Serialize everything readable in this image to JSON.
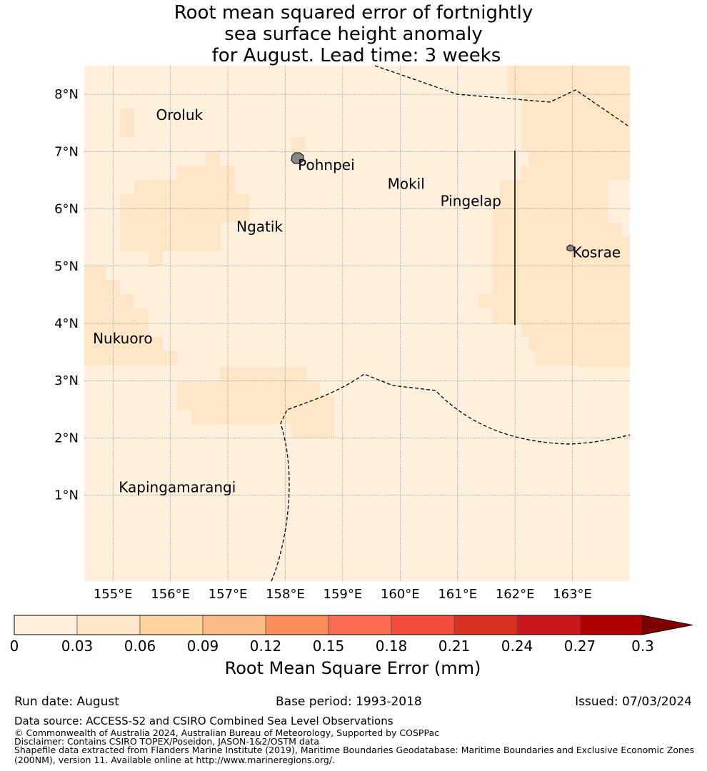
{
  "title": {
    "line1": "Root mean squared error of fortnightly",
    "line2": "sea surface height anomaly",
    "line3": "for August. Lead time: 3 weeks"
  },
  "map": {
    "lon_range": [
      154.5,
      164.0
    ],
    "lat_range": [
      -0.5,
      8.5
    ],
    "lon_ticks": [
      "155°E",
      "156°E",
      "157°E",
      "158°E",
      "159°E",
      "160°E",
      "161°E",
      "162°E",
      "163°E"
    ],
    "lat_ticks": [
      "1°N",
      "2°N",
      "3°N",
      "4°N",
      "5°N",
      "6°N",
      "7°N",
      "8°N"
    ],
    "colors": {
      "bin1": "#fff0dd",
      "bin2": "#fee6c6",
      "grid": "#808080",
      "land": "#888888"
    },
    "places": [
      {
        "name": "Oroluk",
        "lon": 155.75,
        "lat": 7.55
      },
      {
        "name": "Pohnpei",
        "lon": 158.22,
        "lat": 6.68
      },
      {
        "name": "Mokil",
        "lon": 159.78,
        "lat": 6.35
      },
      {
        "name": "Pingelap",
        "lon": 160.7,
        "lat": 6.05
      },
      {
        "name": "Ngatik",
        "lon": 157.15,
        "lat": 5.6
      },
      {
        "name": "Kosrae",
        "lon": 163.0,
        "lat": 5.15
      },
      {
        "name": "Nukuoro",
        "lon": 154.65,
        "lat": 3.65
      },
      {
        "name": "Kapingamarangi",
        "lon": 155.1,
        "lat": 1.05
      }
    ]
  },
  "colorbar": {
    "ticks": [
      "0",
      "0.03",
      "0.06",
      "0.09",
      "0.12",
      "0.15",
      "0.18",
      "0.21",
      "0.24",
      "0.27",
      "0.3"
    ],
    "colors": [
      "#fff0dd",
      "#fee6c6",
      "#fdd49e",
      "#fdbb84",
      "#fc8d59",
      "#fc6a50",
      "#f44d3d",
      "#d7301f",
      "#c8161a",
      "#b00000"
    ],
    "extend_color": "#7f0000",
    "label": "Root Mean Square Error (mm)"
  },
  "footer": {
    "run_date": "Run date: August",
    "base_period": "Base period: 1993-2018",
    "issued": "Issued: 07/03/2024",
    "source": "Data source: ACCESS-S2 and CSIRO Combined Sea Level Observations",
    "copyright": "© Commonwealth of Australia 2024, Australian Bureau of Meteorology, Supported by COSPPac",
    "disclaimer": "Disclaimer: Contains CSIRO TOPEX/Poseidon, JASON-1&2/OSTM data",
    "shapefile1": "Shapefile data extracted from Flanders Marine Institute (2019), Maritime Boundaries Geodatabase: Maritime Boundaries and Exclusive Economic Zones",
    "shapefile2": "(200NM), version 11. Available online at http://www.marineregions.org/."
  }
}
